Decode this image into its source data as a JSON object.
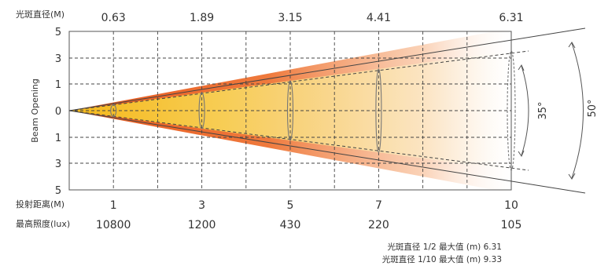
{
  "chart_data": {
    "type": "beam-angle-diagram",
    "ylabel": "Beam Opening",
    "y_ticks": [
      "5",
      "3",
      "1",
      "0",
      "1",
      "3",
      "5"
    ],
    "diameter_label": "光斑直径(M)",
    "diameters": [
      "0.63",
      "1.89",
      "3.15",
      "4.41",
      "6.31"
    ],
    "distance_label": "投射距离(M)",
    "distances": [
      "1",
      "3",
      "5",
      "7",
      "10"
    ],
    "distance_values": [
      1,
      3,
      5,
      7,
      10
    ],
    "illuminance_label": "最高照度(lux)",
    "illuminance": [
      "10800",
      "1200",
      "430",
      "220",
      "105"
    ],
    "beam_angle": "35°",
    "field_angle": "50°",
    "note_half": "光斑直径 1/2 最大值 (m) 6.31",
    "note_tenth": "光斑直径 1/10 最大值 (m) 9.33",
    "colors": {
      "center": "#f5c12a",
      "edge": "#e8551a",
      "grid": "#666666",
      "text": "#333333"
    }
  }
}
